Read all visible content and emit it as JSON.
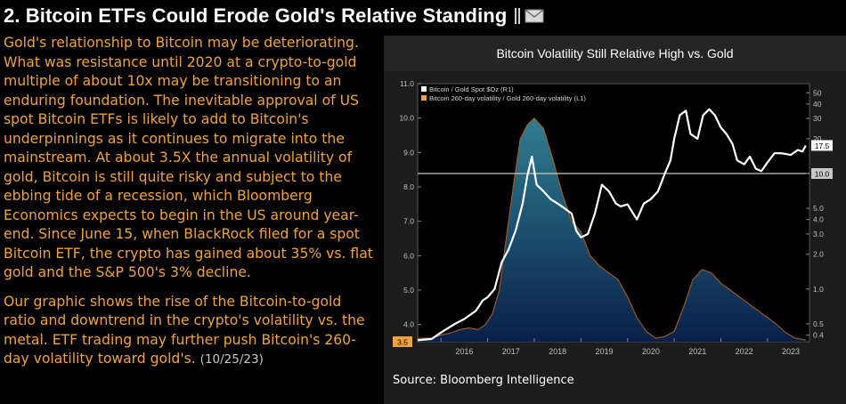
{
  "header": {
    "title": "2. Bitcoin ETFs Could Erode Gold's Relative Standing",
    "icons": [
      "bookmark-icon",
      "email-icon"
    ]
  },
  "article": {
    "paragraph1": "Gold's relationship to Bitcoin may be deteriorating. What was resistance until 2020 at a crypto-to-gold multiple of about 10x may be transitioning to an enduring foundation. The inevitable approval of US spot Bitcoin ETFs is likely to add to Bitcoin's underpinnings as it continues to migrate into the mainstream. At about 3.5X the annual volatility of gold, Bitcoin is still quite risky and subject to the ebbing tide of a recession, which Bloomberg Economics expects to begin in the US around year-end. Since June 15, when BlackRock filed for a spot Bitcoin ETF, the crypto has gained about 35% vs. flat gold and the S&P 500's 3% decline.",
    "paragraph2": "Our graphic shows the rise of the Bitcoin-to-gold ratio and downtrend in the crypto's volatility vs. the metal. ETF trading may further push Bitcoin's 260-day volatility toward gold's.",
    "date": "(10/25/23)"
  },
  "chart": {
    "title": "Bitcoin Volatility Still Relative High vs. Gold",
    "source": "Source: Bloomberg Intelligence"
  },
  "colors": {
    "accent_orange": "#f0a33c",
    "ratio_line": "#ffffff",
    "vol_area_top": "#2f7f8f",
    "vol_area_bottom": "#0a1f4a",
    "vol_outline": "#9a5a1e",
    "card_bg": "#1c1c1c",
    "plot_bg": "#000000"
  },
  "chart_data": {
    "type": "area",
    "title": "Bitcoin Volatility Still Relative High vs. Gold",
    "x_ticks": [
      "2016",
      "2017",
      "2018",
      "2019",
      "2020",
      "2021",
      "2022",
      "2023"
    ],
    "x_range": [
      2015.5,
      2023.9
    ],
    "left_axis": {
      "ticks": [
        "4.0",
        "5.0",
        "6.0",
        "7.0",
        "8.0",
        "9.0",
        "10.0",
        "11.0"
      ],
      "range": [
        3.5,
        11.0
      ],
      "last_label": "3.5"
    },
    "right_axis": {
      "scale": "log",
      "ticks": [
        "0.4",
        "0.5",
        "1.0",
        "2.0",
        "3.0",
        "4.0",
        "5.0",
        "10",
        "20",
        "30",
        "40",
        "50"
      ],
      "range": [
        0.35,
        60
      ],
      "last_labels": [
        "17.5",
        "10.0"
      ]
    },
    "reference_line": {
      "axis": "right",
      "value": 10.0
    },
    "series": [
      {
        "name": "Bitcoin / Gold Spot $Oz (R1)",
        "axis": "right",
        "style": "line",
        "x": [
          2015.5,
          2015.8,
          2016.0,
          2016.3,
          2016.5,
          2016.75,
          2016.9,
          2017.0,
          2017.15,
          2017.3,
          2017.45,
          2017.6,
          2017.75,
          2017.85,
          2017.95,
          2018.05,
          2018.2,
          2018.35,
          2018.5,
          2018.65,
          2018.8,
          2018.9,
          2019.0,
          2019.15,
          2019.3,
          2019.45,
          2019.6,
          2019.75,
          2019.85,
          2020.0,
          2020.2,
          2020.35,
          2020.5,
          2020.65,
          2020.8,
          2020.92,
          2021.0,
          2021.12,
          2021.25,
          2021.35,
          2021.5,
          2021.62,
          2021.75,
          2021.87,
          2022.0,
          2022.12,
          2022.25,
          2022.35,
          2022.5,
          2022.62,
          2022.75,
          2022.87,
          2023.0,
          2023.15,
          2023.3,
          2023.5,
          2023.65,
          2023.75,
          2023.82
        ],
        "y": [
          0.36,
          0.37,
          0.42,
          0.5,
          0.55,
          0.65,
          0.8,
          0.85,
          1.0,
          1.7,
          2.2,
          3.2,
          5.5,
          9.5,
          14.0,
          8.0,
          7.0,
          6.0,
          5.5,
          5.0,
          4.5,
          3.2,
          2.8,
          3.0,
          4.5,
          8.0,
          7.0,
          5.5,
          5.2,
          5.4,
          4.0,
          5.5,
          6.0,
          7.0,
          10.0,
          13.0,
          20.0,
          32.0,
          35.0,
          22.0,
          20.0,
          32.0,
          36.0,
          32.0,
          25.0,
          22.0,
          18.0,
          13.0,
          12.0,
          14.0,
          11.0,
          10.5,
          12.5,
          15.0,
          15.0,
          14.5,
          16.0,
          15.5,
          17.5
        ]
      },
      {
        "name": "Bitcoin 260-day volatility / Gold 260-day volatility (L1)",
        "axis": "left",
        "style": "area",
        "x": [
          2015.5,
          2015.8,
          2016.0,
          2016.2,
          2016.4,
          2016.6,
          2016.8,
          2016.95,
          2017.1,
          2017.25,
          2017.4,
          2017.55,
          2017.7,
          2017.85,
          2018.0,
          2018.2,
          2018.4,
          2018.6,
          2018.8,
          2019.0,
          2019.2,
          2019.4,
          2019.6,
          2019.8,
          2020.0,
          2020.2,
          2020.4,
          2020.6,
          2020.8,
          2021.0,
          2021.2,
          2021.4,
          2021.6,
          2021.8,
          2022.0,
          2022.2,
          2022.4,
          2022.6,
          2022.8,
          2023.0,
          2023.2,
          2023.4,
          2023.6,
          2023.82
        ],
        "y": [
          3.6,
          3.6,
          3.7,
          3.75,
          3.85,
          3.9,
          3.85,
          4.0,
          4.3,
          5.0,
          6.5,
          8.0,
          9.4,
          9.8,
          10.0,
          9.7,
          8.8,
          7.8,
          7.0,
          6.7,
          6.0,
          5.7,
          5.5,
          5.3,
          4.8,
          4.2,
          3.8,
          3.6,
          3.65,
          3.8,
          4.5,
          5.3,
          5.6,
          5.5,
          5.2,
          5.0,
          4.8,
          4.6,
          4.4,
          4.2,
          4.0,
          3.75,
          3.6,
          3.55
        ]
      }
    ]
  }
}
